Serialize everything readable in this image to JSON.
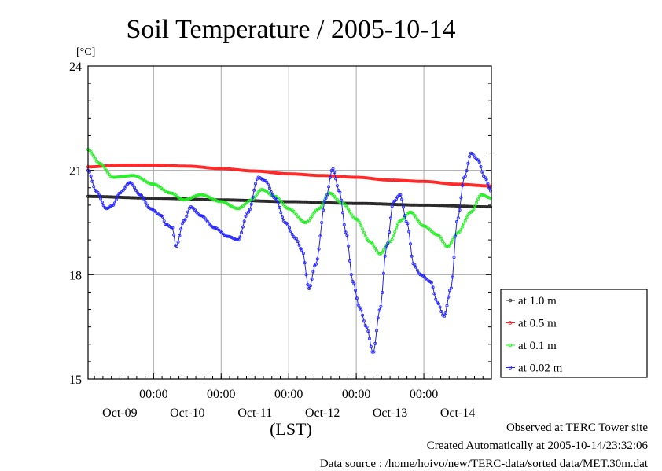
{
  "chart_data": {
    "type": "line",
    "title": "Soil Temperature / 2005-10-14",
    "ylabel": "[°C]",
    "xlabel": "(LST)",
    "ylim": [
      15,
      24
    ],
    "yticks": [
      15,
      18,
      21,
      24
    ],
    "xlim": [
      -0.97,
      5.0
    ],
    "time_ticks": [
      {
        "x": 0,
        "time": "00:00",
        "date": "Oct-10"
      },
      {
        "x": 1,
        "time": "00:00",
        "date": "Oct-11"
      },
      {
        "x": 2,
        "time": "00:00",
        "date": "Oct-12"
      },
      {
        "x": 3,
        "time": "00:00",
        "date": "Oct-13"
      },
      {
        "x": 4,
        "time": "00:00",
        "date": "Oct-14"
      }
    ],
    "day_labels": [
      {
        "x": -0.5,
        "date": "Oct-09"
      },
      {
        "x": 0.5,
        "date": "Oct-10"
      },
      {
        "x": 1.5,
        "date": "Oct-11"
      },
      {
        "x": 2.5,
        "date": "Oct-12"
      },
      {
        "x": 3.5,
        "date": "Oct-13"
      },
      {
        "x": 4.5,
        "date": "Oct-14"
      }
    ],
    "grid": true,
    "legend_position": "bottom-right",
    "series": [
      {
        "name": "at 1.0 m",
        "color": "#222222",
        "points": [
          [
            -0.97,
            20.25
          ],
          [
            0,
            20.2
          ],
          [
            1,
            20.15
          ],
          [
            2,
            20.1
          ],
          [
            3,
            20.05
          ],
          [
            4,
            20.0
          ],
          [
            5,
            19.95
          ]
        ]
      },
      {
        "name": "at 0.5 m",
        "color": "#ff2020",
        "points": [
          [
            -0.97,
            21.1
          ],
          [
            -0.5,
            21.15
          ],
          [
            0,
            21.15
          ],
          [
            0.5,
            21.12
          ],
          [
            1,
            21.05
          ],
          [
            1.5,
            20.98
          ],
          [
            2,
            20.9
          ],
          [
            2.5,
            20.85
          ],
          [
            3,
            20.8
          ],
          [
            3.5,
            20.72
          ],
          [
            4,
            20.68
          ],
          [
            4.5,
            20.6
          ],
          [
            5,
            20.55
          ]
        ]
      },
      {
        "name": "at 0.1 m",
        "color": "#22ee22",
        "points": [
          [
            -0.97,
            21.6
          ],
          [
            -0.8,
            21.2
          ],
          [
            -0.6,
            20.8
          ],
          [
            -0.3,
            20.85
          ],
          [
            0,
            20.6
          ],
          [
            0.25,
            20.35
          ],
          [
            0.45,
            20.15
          ],
          [
            0.7,
            20.3
          ],
          [
            1,
            20.1
          ],
          [
            1.25,
            19.9
          ],
          [
            1.45,
            20.15
          ],
          [
            1.6,
            20.45
          ],
          [
            1.8,
            20.25
          ],
          [
            2,
            19.9
          ],
          [
            2.25,
            19.5
          ],
          [
            2.45,
            19.9
          ],
          [
            2.6,
            20.35
          ],
          [
            2.8,
            20.05
          ],
          [
            3,
            19.6
          ],
          [
            3.2,
            18.95
          ],
          [
            3.35,
            18.6
          ],
          [
            3.5,
            18.95
          ],
          [
            3.65,
            19.55
          ],
          [
            3.8,
            19.8
          ],
          [
            4,
            19.4
          ],
          [
            4.2,
            19.15
          ],
          [
            4.35,
            18.8
          ],
          [
            4.5,
            19.2
          ],
          [
            4.7,
            19.8
          ],
          [
            4.85,
            20.3
          ],
          [
            5,
            20.2
          ]
        ]
      },
      {
        "name": "at 0.02 m",
        "color": "#2222ff",
        "points": [
          [
            -0.97,
            21.0
          ],
          [
            -0.85,
            20.4
          ],
          [
            -0.7,
            19.9
          ],
          [
            -0.6,
            20.0
          ],
          [
            -0.5,
            20.35
          ],
          [
            -0.35,
            20.65
          ],
          [
            -0.2,
            20.3
          ],
          [
            -0.05,
            19.9
          ],
          [
            0.12,
            19.7
          ],
          [
            0.18,
            19.45
          ],
          [
            0.28,
            19.35
          ],
          [
            0.33,
            18.8
          ],
          [
            0.45,
            19.55
          ],
          [
            0.55,
            19.95
          ],
          [
            0.7,
            19.7
          ],
          [
            0.9,
            19.35
          ],
          [
            1.1,
            19.1
          ],
          [
            1.25,
            19.0
          ],
          [
            1.4,
            19.8
          ],
          [
            1.55,
            20.8
          ],
          [
            1.65,
            20.7
          ],
          [
            1.8,
            20.2
          ],
          [
            1.95,
            19.5
          ],
          [
            2.1,
            19.05
          ],
          [
            2.2,
            18.7
          ],
          [
            2.3,
            17.6
          ],
          [
            2.4,
            18.3
          ],
          [
            2.55,
            20.2
          ],
          [
            2.65,
            21.05
          ],
          [
            2.75,
            20.4
          ],
          [
            2.85,
            19.2
          ],
          [
            2.95,
            17.8
          ],
          [
            3.05,
            17.05
          ],
          [
            3.15,
            16.5
          ],
          [
            3.25,
            15.75
          ],
          [
            3.35,
            17.0
          ],
          [
            3.45,
            18.8
          ],
          [
            3.55,
            20.1
          ],
          [
            3.65,
            20.3
          ],
          [
            3.75,
            19.5
          ],
          [
            3.85,
            18.3
          ],
          [
            3.95,
            18.0
          ],
          [
            4.1,
            17.8
          ],
          [
            4.2,
            17.2
          ],
          [
            4.3,
            16.8
          ],
          [
            4.4,
            17.6
          ],
          [
            4.5,
            19.6
          ],
          [
            4.6,
            20.8
          ],
          [
            4.7,
            21.5
          ],
          [
            4.8,
            21.3
          ],
          [
            4.9,
            20.8
          ],
          [
            5,
            20.4
          ]
        ]
      }
    ]
  },
  "footer": {
    "observed": "Observed at TERC Tower site",
    "created": "Created Automatically at 2005-10-14/23:32:06",
    "source": "Data source : /home/hoivo/new/TERC-data/sorted  data/MET.30m.dat"
  }
}
